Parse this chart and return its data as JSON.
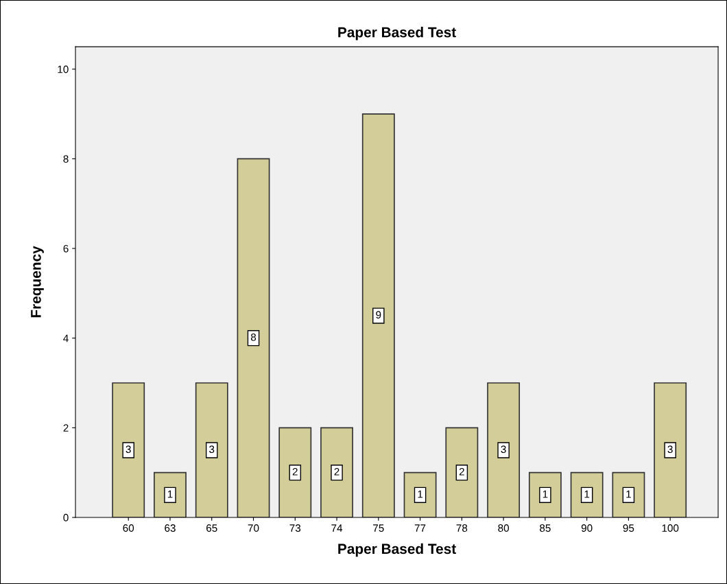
{
  "chart_data": {
    "type": "bar",
    "title": "Paper Based Test",
    "xlabel": "Paper Based Test",
    "ylabel": "Frequency",
    "categories": [
      "60",
      "63",
      "65",
      "70",
      "73",
      "74",
      "75",
      "77",
      "78",
      "80",
      "85",
      "90",
      "95",
      "100"
    ],
    "values": [
      3,
      1,
      3,
      8,
      2,
      2,
      9,
      1,
      2,
      3,
      1,
      1,
      1,
      3
    ],
    "color": "#d3ce99",
    "ylim": [
      0,
      10.5
    ],
    "yticks": [
      0,
      2,
      4,
      6,
      8,
      10
    ],
    "grid": false,
    "data_labels": true
  }
}
